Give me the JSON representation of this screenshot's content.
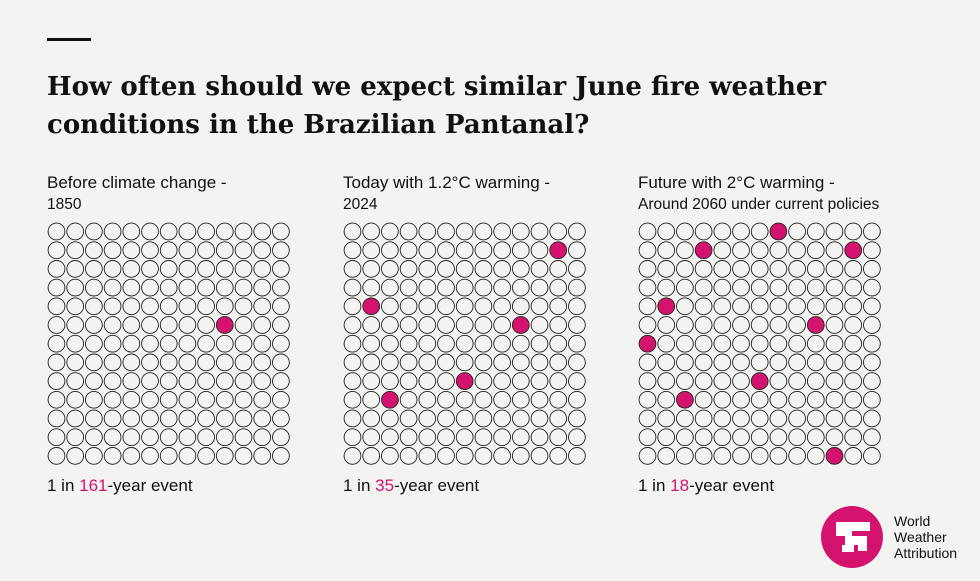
{
  "title": "How often should we expect similar June fire weather conditions in the Brazilian Pantanal?",
  "colors": {
    "highlight": "#d4136e",
    "circle_stroke": "#222222",
    "background": "#f3f3f1"
  },
  "logo": {
    "lines": [
      "World",
      "Weather",
      "Attribution"
    ]
  },
  "chart_data": [
    {
      "type": "waffle",
      "grid": {
        "rows": 13,
        "cols": 13
      },
      "heading": "Before climate change -",
      "subheading": "1850",
      "caption_prefix": "1 in ",
      "caption_value": "161",
      "caption_suffix": "-year event",
      "highlighted_cells": [
        [
          5,
          9
        ]
      ]
    },
    {
      "type": "waffle",
      "grid": {
        "rows": 13,
        "cols": 13
      },
      "heading": "Today with 1.2°C warming -",
      "subheading": "2024",
      "caption_prefix": "1 in ",
      "caption_value": "35",
      "caption_suffix": "-year event",
      "highlighted_cells": [
        [
          1,
          11
        ],
        [
          4,
          1
        ],
        [
          5,
          9
        ],
        [
          8,
          6
        ],
        [
          9,
          2
        ]
      ]
    },
    {
      "type": "waffle",
      "grid": {
        "rows": 13,
        "cols": 13
      },
      "heading": "Future with 2°C warming -",
      "subheading": "Around 2060 under current policies",
      "caption_prefix": "1 in ",
      "caption_value": "18",
      "caption_suffix": "-year event",
      "highlighted_cells": [
        [
          0,
          7
        ],
        [
          1,
          3
        ],
        [
          1,
          11
        ],
        [
          4,
          1
        ],
        [
          5,
          9
        ],
        [
          6,
          0
        ],
        [
          8,
          6
        ],
        [
          9,
          2
        ],
        [
          12,
          10
        ]
      ]
    }
  ]
}
